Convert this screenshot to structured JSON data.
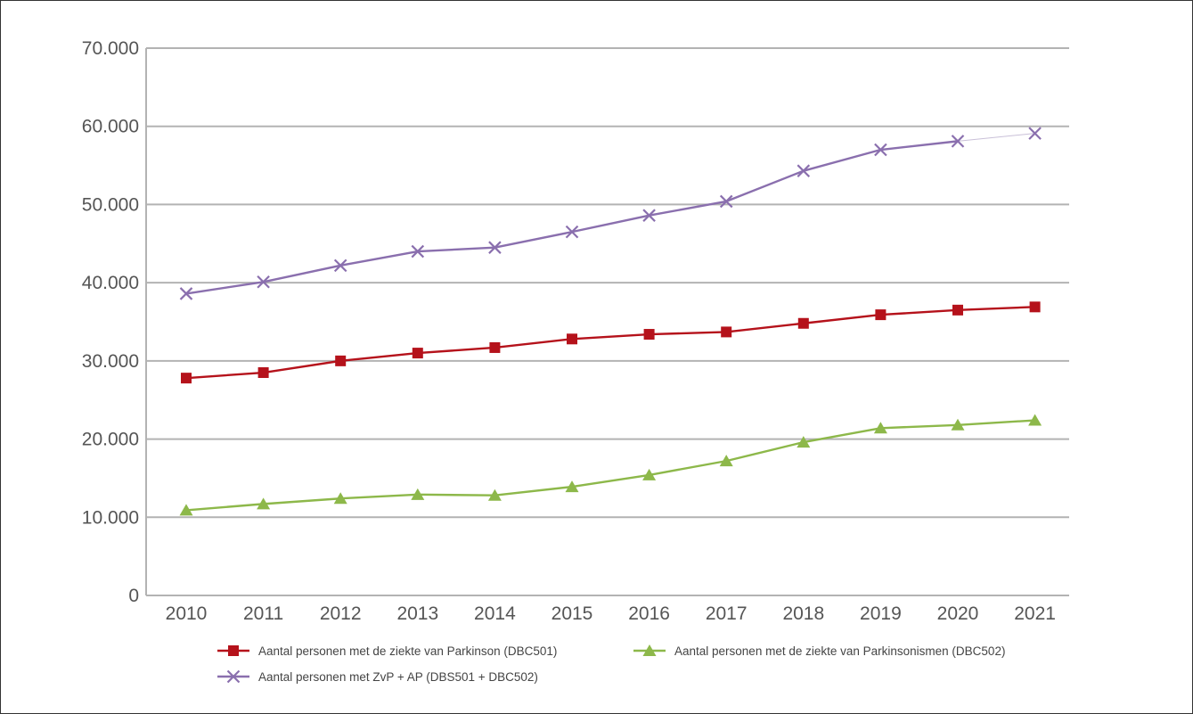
{
  "chart_data": {
    "type": "line",
    "x": [
      "2010",
      "2011",
      "2012",
      "2013",
      "2014",
      "2015",
      "2016",
      "2017",
      "2018",
      "2019",
      "2020",
      "2021"
    ],
    "ylim": [
      0,
      70000
    ],
    "yticks": [
      0,
      10000,
      20000,
      30000,
      40000,
      50000,
      60000,
      70000
    ],
    "ytick_labels": [
      "0",
      "10.000",
      "20.000",
      "30.000",
      "40.000",
      "50.000",
      "60.000",
      "70.000"
    ],
    "grid": true,
    "legend_position": "bottom",
    "series": [
      {
        "name": "Aantal personen met de ziekte van Parkinson (DBC501)",
        "marker": "square",
        "color": "#b5121b",
        "values": [
          27800,
          28500,
          30000,
          31000,
          31700,
          32800,
          33400,
          33700,
          34800,
          35900,
          36500,
          36900
        ]
      },
      {
        "name": "Aantal personen met de ziekte van Parkinsonismen (DBC502)",
        "marker": "triangle",
        "color": "#8db84a",
        "values": [
          10900,
          11700,
          12400,
          12900,
          12800,
          13900,
          15400,
          17200,
          19600,
          21400,
          21800,
          22400
        ]
      },
      {
        "name": "Aantal personen met ZvP + AP (DBS501 + DBC502)",
        "marker": "x",
        "color": "#8a6fae",
        "values": [
          38600,
          40100,
          42200,
          44000,
          44500,
          46500,
          48600,
          50400,
          54300,
          57000,
          58100,
          59100
        ]
      }
    ]
  }
}
